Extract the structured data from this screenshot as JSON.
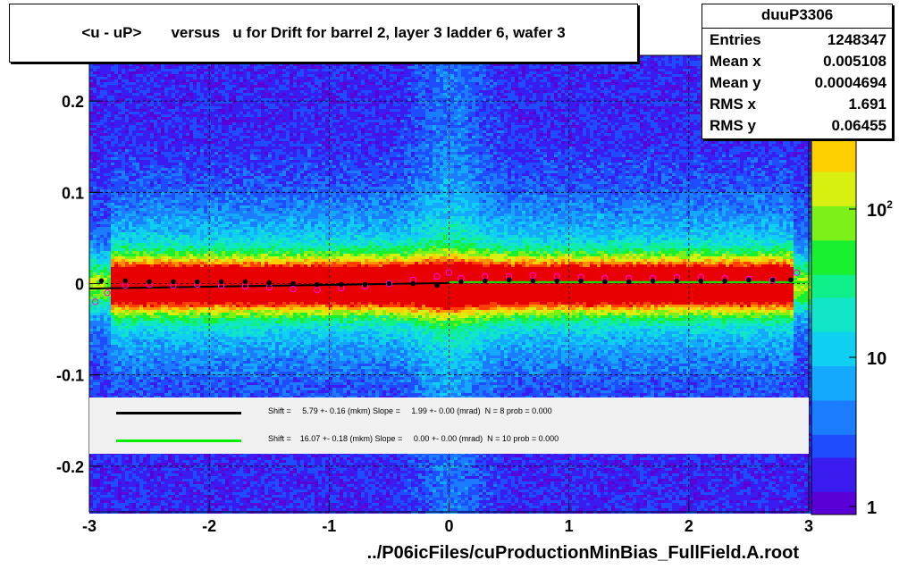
{
  "title": "<u - uP>       versus   u for Drift for barrel 2, layer 3 ladder 6, wafer 3",
  "stats": {
    "name": "duuP3306",
    "rows": [
      {
        "label": "Entries",
        "value": "1248347"
      },
      {
        "label": "Mean x",
        "value": "0.005108"
      },
      {
        "label": "Mean y",
        "value": "0.0004694"
      },
      {
        "label": "RMS x",
        "value": "1.691"
      },
      {
        "label": "RMS y",
        "value": "0.06455"
      }
    ]
  },
  "xlabel": "../P06icFiles/cuProductionMinBias_FullField.A.root",
  "legend": [
    {
      "color": "#000000",
      "text": "Shift =     5.79 +- 0.16 (mkm) Slope =     1.99 +- 0.00 (mrad)  N = 8 prob = 0.000"
    },
    {
      "color": "#00ee00",
      "text": "Shift =    16.07 +- 0.18 (mkm) Slope =     0.00 +- 0.00 (mrad)  N = 10 prob = 0.000"
    }
  ],
  "chart_data": {
    "type": "heatmap",
    "xlim": [
      -3,
      3
    ],
    "ylim": [
      -0.25,
      0.25
    ],
    "x_ticks": [
      "-3",
      "-2",
      "-1",
      "0",
      "1",
      "2",
      "3"
    ],
    "y_ticks": [
      "-0.2",
      "-0.1",
      "0",
      "0.1",
      "0.2"
    ],
    "z_scale": "log",
    "z_ticks": [
      "1",
      "10",
      "10^2"
    ],
    "grid": true,
    "profile_black": {
      "x": [
        -2.9,
        -2.7,
        -2.5,
        -2.3,
        -2.1,
        -1.9,
        -1.7,
        -1.5,
        -1.3,
        -1.1,
        -0.9,
        -0.7,
        -0.5,
        -0.3,
        -0.1,
        0.1,
        0.3,
        0.5,
        0.7,
        0.9,
        1.1,
        1.3,
        1.5,
        1.7,
        1.9,
        2.1,
        2.3,
        2.5,
        2.7,
        2.85
      ],
      "y": [
        0.003,
        0.003,
        0.002,
        0.002,
        0.002,
        0.002,
        0.002,
        0.001,
        0.0,
        -0.001,
        -0.001,
        -0.001,
        0.0,
        0.0,
        -0.002,
        0.002,
        0.003,
        0.004,
        0.003,
        0.003,
        0.003,
        0.002,
        0.002,
        0.003,
        0.003,
        0.003,
        0.003,
        0.004,
        0.004,
        0.004
      ]
    },
    "profile_magenta": {
      "x": [
        -2.95,
        -2.85,
        -2.7,
        -2.5,
        -2.3,
        -2.1,
        -1.9,
        -1.7,
        -1.5,
        -1.3,
        -1.1,
        -0.9,
        -0.7,
        -0.5,
        -0.3,
        -0.1,
        0.0,
        0.1,
        0.3,
        0.5,
        0.7,
        0.9,
        1.1,
        1.3,
        1.5,
        1.7,
        1.9,
        2.1,
        2.3,
        2.5,
        2.7,
        2.9
      ],
      "y": [
        -0.02,
        -0.01,
        -0.002,
        -0.001,
        -0.002,
        -0.001,
        -0.002,
        -0.003,
        -0.004,
        -0.006,
        -0.007,
        -0.005,
        -0.003,
        0.0,
        0.004,
        0.008,
        0.012,
        0.006,
        0.008,
        0.008,
        0.009,
        0.008,
        0.007,
        0.006,
        0.006,
        0.006,
        0.007,
        0.007,
        0.006,
        0.005,
        0.004,
        0.012
      ]
    },
    "fit_black": {
      "shift_mkm": 5.79,
      "slope_mrad": 1.99
    },
    "fit_green": {
      "shift_mkm": 16.07,
      "slope_mrad": 0.0
    }
  }
}
